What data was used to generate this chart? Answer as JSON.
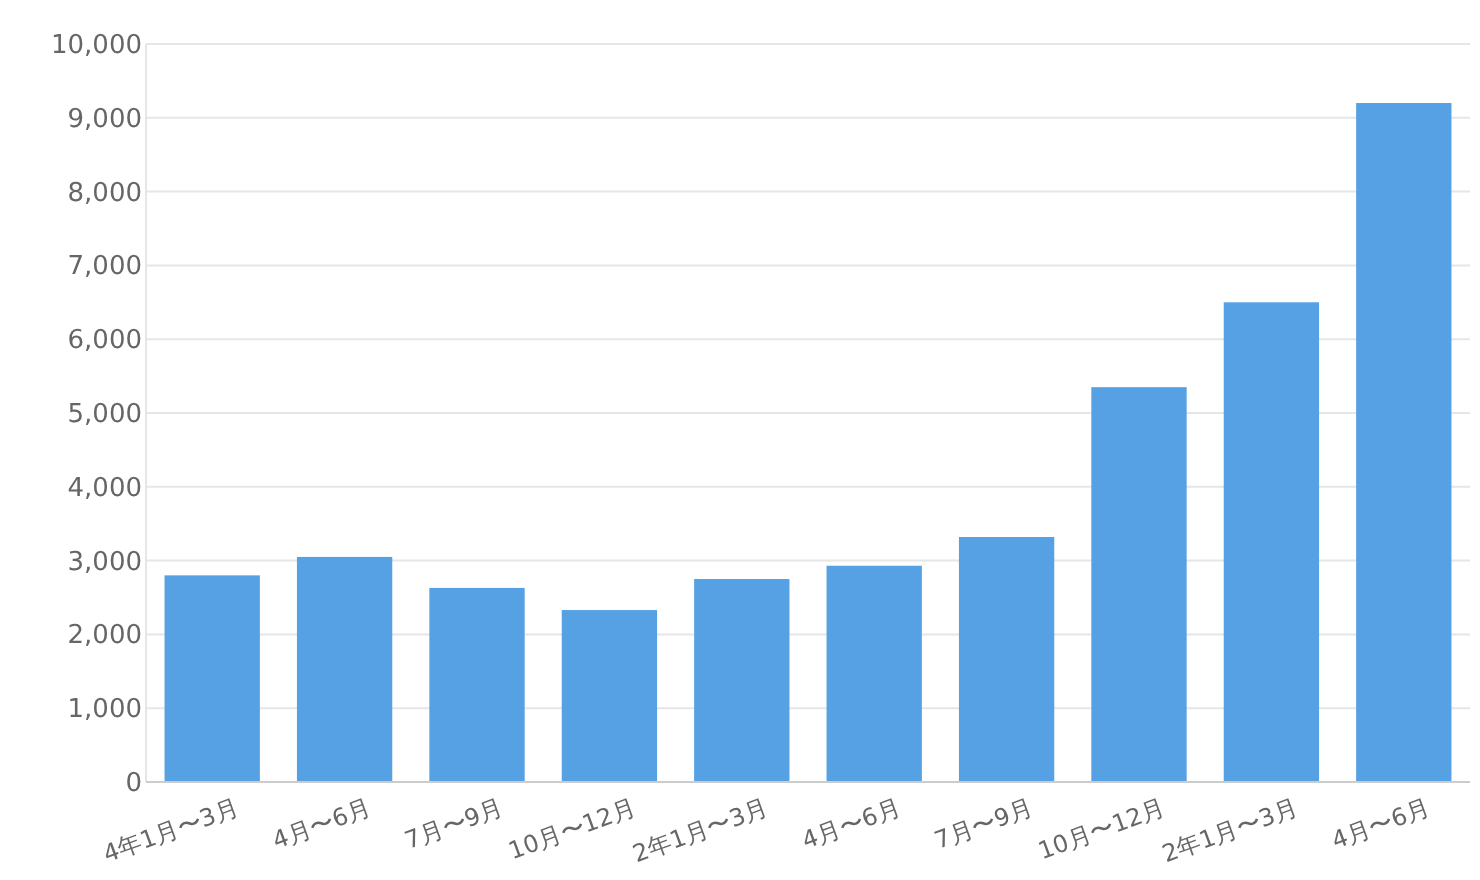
{
  "chart_data": {
    "type": "bar",
    "categories": [
      "4年1月〜3月",
      "4月〜6月",
      "7月〜9月",
      "10月〜12月",
      "2年1月〜3月",
      "4月〜6月",
      "7月〜9月",
      "10月〜12月",
      "2年1月〜3月",
      "4月〜6月"
    ],
    "values": [
      2800,
      3050,
      2630,
      2330,
      2750,
      2930,
      3320,
      5350,
      6500,
      9200
    ],
    "color": "#56a0e4",
    "ylim": [
      0,
      10000
    ],
    "yticks": [
      {
        "value": 0,
        "label": "0"
      },
      {
        "value": 1000,
        "label": "1,000"
      },
      {
        "value": 2000,
        "label": "2,000"
      },
      {
        "value": 3000,
        "label": "3,000"
      },
      {
        "value": 4000,
        "label": "4,000"
      },
      {
        "value": 5000,
        "label": "5,000"
      },
      {
        "value": 6000,
        "label": "6,000"
      },
      {
        "value": 7000,
        "label": "7,000"
      },
      {
        "value": 8000,
        "label": "8,000"
      },
      {
        "value": 9000,
        "label": "9,000"
      },
      {
        "value": 10000,
        "label": "10,000"
      }
    ],
    "grid": "y"
  }
}
